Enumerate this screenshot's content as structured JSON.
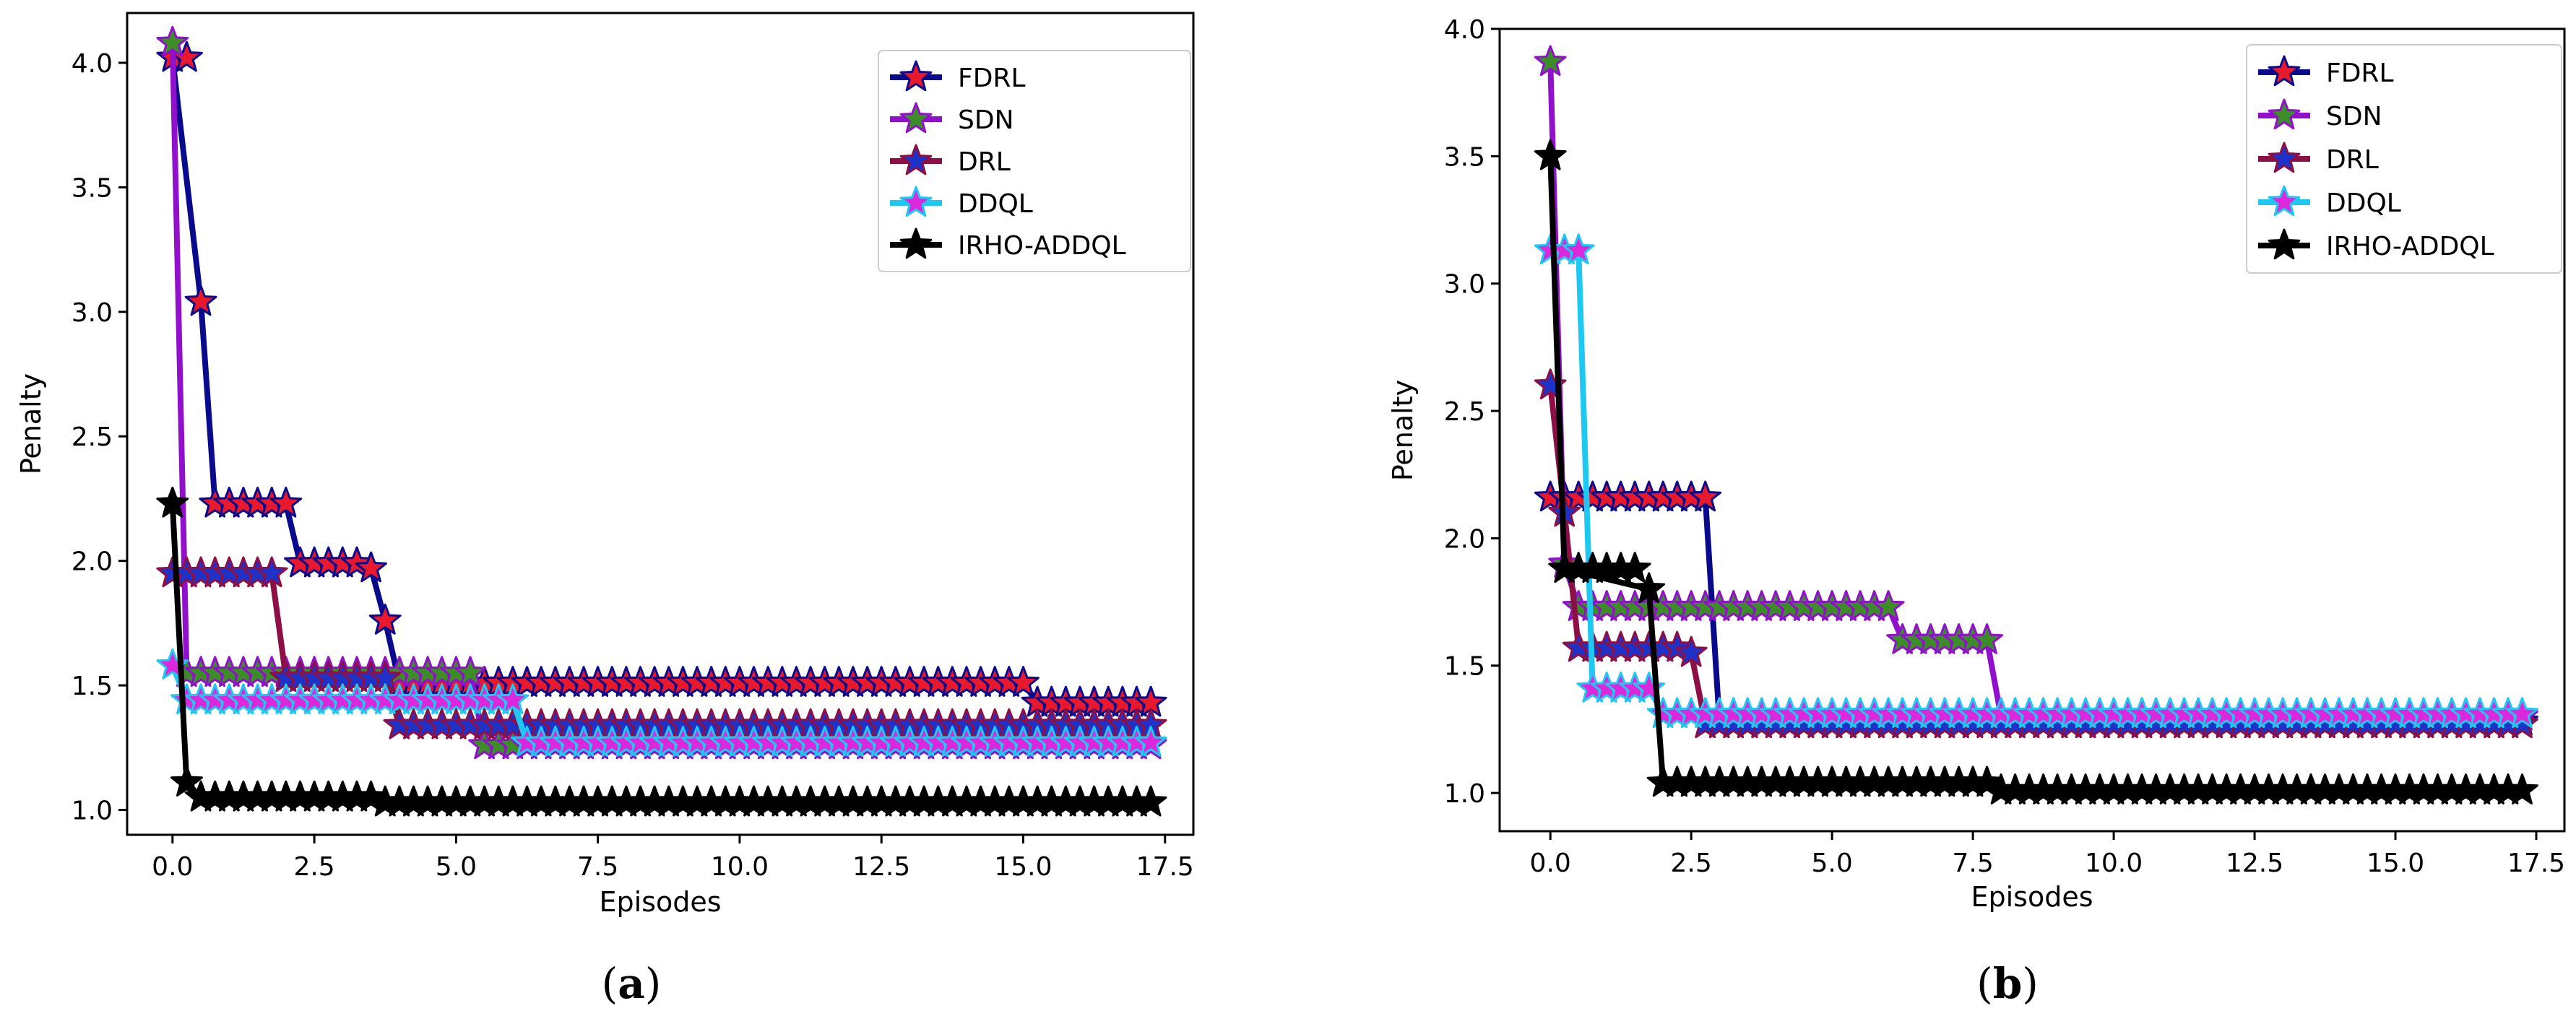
{
  "chart_data": [
    {
      "type": "line",
      "panel_label": "a",
      "xlabel": "Episodes",
      "ylabel": "Penalty",
      "xlim": [
        -0.8,
        18.0
      ],
      "ylim": [
        0.9,
        4.2
      ],
      "xticks": [
        0.0,
        2.5,
        5.0,
        7.5,
        10.0,
        12.5,
        15.0,
        17.5
      ],
      "xtick_labels": [
        "0.0",
        "2.5",
        "5.0",
        "7.5",
        "10.0",
        "12.5",
        "15.0",
        "17.5"
      ],
      "yticks": [
        1.0,
        1.5,
        2.0,
        2.5,
        3.0,
        3.5,
        4.0
      ],
      "ytick_labels": [
        "1.0",
        "1.5",
        "2.0",
        "2.5",
        "3.0",
        "3.5",
        "4.0"
      ],
      "legend_position": "top-right",
      "legend": [
        "FDRL",
        "SDN",
        "DRL",
        "DDQL",
        "IRHO-ADDQL"
      ],
      "series": [
        {
          "name": "FDRL",
          "line_color": "#0a0a8c",
          "marker_fill": "#e8182d",
          "marker_edge": "#0a0a8c",
          "x": [
            0,
            0.5,
            0.75,
            2.0,
            2.25,
            3.5,
            3.75,
            4.0,
            15.0,
            15.25,
            17.25
          ],
          "y": [
            4.02,
            3.04,
            2.23,
            2.23,
            1.99,
            1.97,
            1.76,
            1.51,
            1.51,
            1.43,
            1.43
          ]
        },
        {
          "name": "SDN",
          "line_color": "#9010cc",
          "marker_fill": "#3c8c28",
          "marker_edge": "#9010cc",
          "x": [
            0,
            0.25,
            5.25,
            5.5,
            17.25
          ],
          "y": [
            4.08,
            1.55,
            1.55,
            1.26,
            1.26
          ]
        },
        {
          "name": "DRL",
          "line_color": "#8c0f46",
          "marker_fill": "#1e32c8",
          "marker_edge": "#8c0f46",
          "x": [
            0,
            1.75,
            2.0,
            3.75,
            4.0,
            17.25
          ],
          "y": [
            1.95,
            1.95,
            1.53,
            1.53,
            1.34,
            1.34
          ]
        },
        {
          "name": "DDQL",
          "line_color": "#1ec8f0",
          "marker_fill": "#dc28dc",
          "marker_edge": "#1ec8f0",
          "x": [
            0,
            0.25,
            6.0,
            6.25,
            17.25
          ],
          "y": [
            1.58,
            1.44,
            1.44,
            1.27,
            1.27
          ]
        },
        {
          "name": "IRHO-ADDQL",
          "line_color": "#000000",
          "marker_fill": "#000000",
          "marker_edge": "#000000",
          "x": [
            0,
            0.25,
            0.5,
            3.5,
            3.75,
            17.25
          ],
          "y": [
            2.23,
            1.11,
            1.05,
            1.05,
            1.03,
            1.03
          ]
        }
      ]
    },
    {
      "type": "line",
      "panel_label": "b",
      "xlabel": "Episodes",
      "ylabel": "Penalty",
      "xlim": [
        -0.9,
        18.0
      ],
      "ylim": [
        0.85,
        4.0
      ],
      "xticks": [
        0.0,
        2.5,
        5.0,
        7.5,
        10.0,
        12.5,
        15.0,
        17.5
      ],
      "xtick_labels": [
        "0.0",
        "2.5",
        "5.0",
        "7.5",
        "10.0",
        "12.5",
        "15.0",
        "17.5"
      ],
      "yticks": [
        1.0,
        1.5,
        2.0,
        2.5,
        3.0,
        3.5,
        4.0
      ],
      "ytick_labels": [
        "1.0",
        "1.5",
        "2.0",
        "2.5",
        "3.0",
        "3.5",
        "4.0"
      ],
      "legend_position": "top-right",
      "legend": [
        "FDRL",
        "SDN",
        "DRL",
        "DDQL",
        "IRHO-ADDQL"
      ],
      "series": [
        {
          "name": "FDRL",
          "line_color": "#0a0a8c",
          "marker_fill": "#e8182d",
          "marker_edge": "#0a0a8c",
          "x": [
            0,
            2.75,
            3.0,
            17.25
          ],
          "y": [
            2.16,
            2.16,
            1.28,
            1.28
          ]
        },
        {
          "name": "SDN",
          "line_color": "#9010cc",
          "marker_fill": "#3c8c28",
          "marker_edge": "#9010cc",
          "x": [
            0,
            0.25,
            0.5,
            6.0,
            6.25,
            7.75,
            8.0,
            17.25
          ],
          "y": [
            3.87,
            1.9,
            1.73,
            1.73,
            1.6,
            1.6,
            1.3,
            1.3
          ]
        },
        {
          "name": "DRL",
          "line_color": "#8c0f46",
          "marker_fill": "#1e32c8",
          "marker_edge": "#8c0f46",
          "x": [
            0,
            0.25,
            0.5,
            2.5,
            2.75,
            17.25
          ],
          "y": [
            2.6,
            2.1,
            1.57,
            1.55,
            1.27,
            1.27
          ]
        },
        {
          "name": "DDQL",
          "line_color": "#1ec8f0",
          "marker_fill": "#dc28dc",
          "marker_edge": "#1ec8f0",
          "x": [
            0,
            0.5,
            0.75,
            1.75,
            2.0,
            17.25
          ],
          "y": [
            3.13,
            3.13,
            1.41,
            1.41,
            1.31,
            1.31
          ]
        },
        {
          "name": "IRHO-ADDQL",
          "line_color": "#000000",
          "marker_fill": "#000000",
          "marker_edge": "#000000",
          "x": [
            0,
            0.25,
            1.75,
            2.0,
            7.75,
            8.0,
            17.25
          ],
          "y": [
            3.5,
            1.88,
            1.8,
            1.04,
            1.04,
            1.01,
            1.01
          ]
        }
      ]
    }
  ]
}
